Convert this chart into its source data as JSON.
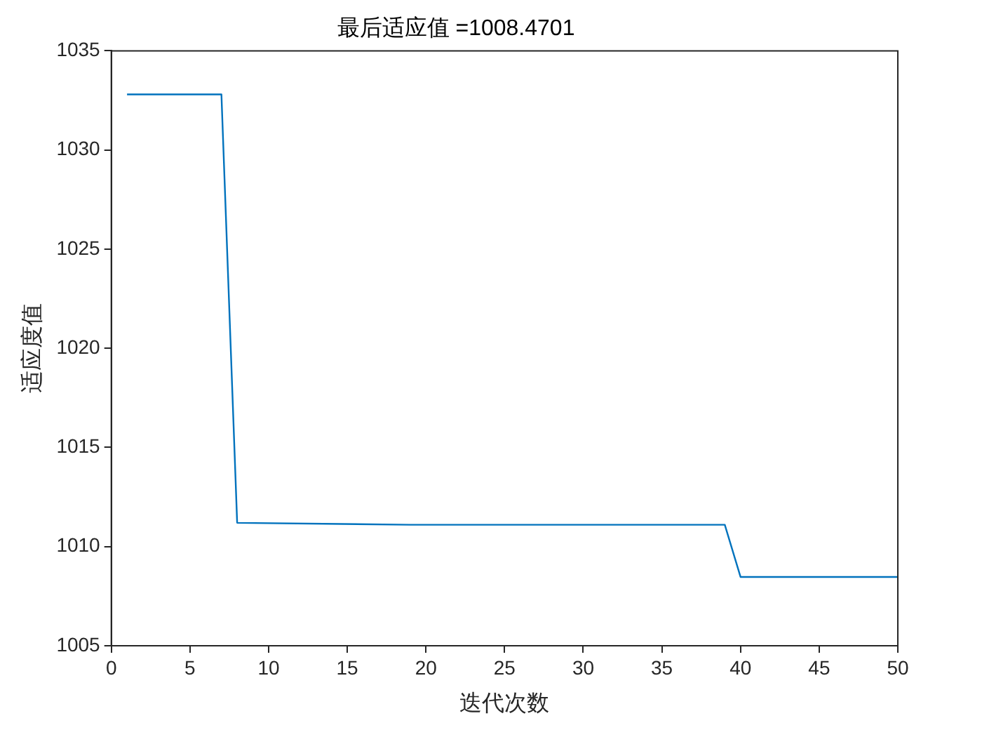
{
  "chart_data": {
    "type": "line",
    "title": "最后适应值 =1008.4701",
    "xlabel": "迭代次数",
    "ylabel": "适应度值",
    "x": [
      1,
      7,
      8,
      19,
      39,
      40,
      50
    ],
    "series": [
      {
        "color": "#0072bd",
        "values": [
          1032.8,
          1032.8,
          1011.2,
          1011.1,
          1011.1,
          1008.4701,
          1008.4701
        ]
      }
    ],
    "xlim": [
      0,
      50
    ],
    "xticks": [
      0,
      5,
      10,
      15,
      20,
      25,
      30,
      35,
      40,
      45,
      50
    ],
    "ylim": [
      1005,
      1035
    ],
    "yticks": [
      1005,
      1010,
      1015,
      1020,
      1025,
      1030,
      1035
    ],
    "grid": false,
    "legend": false,
    "marker": "none",
    "line_style": "solid"
  }
}
